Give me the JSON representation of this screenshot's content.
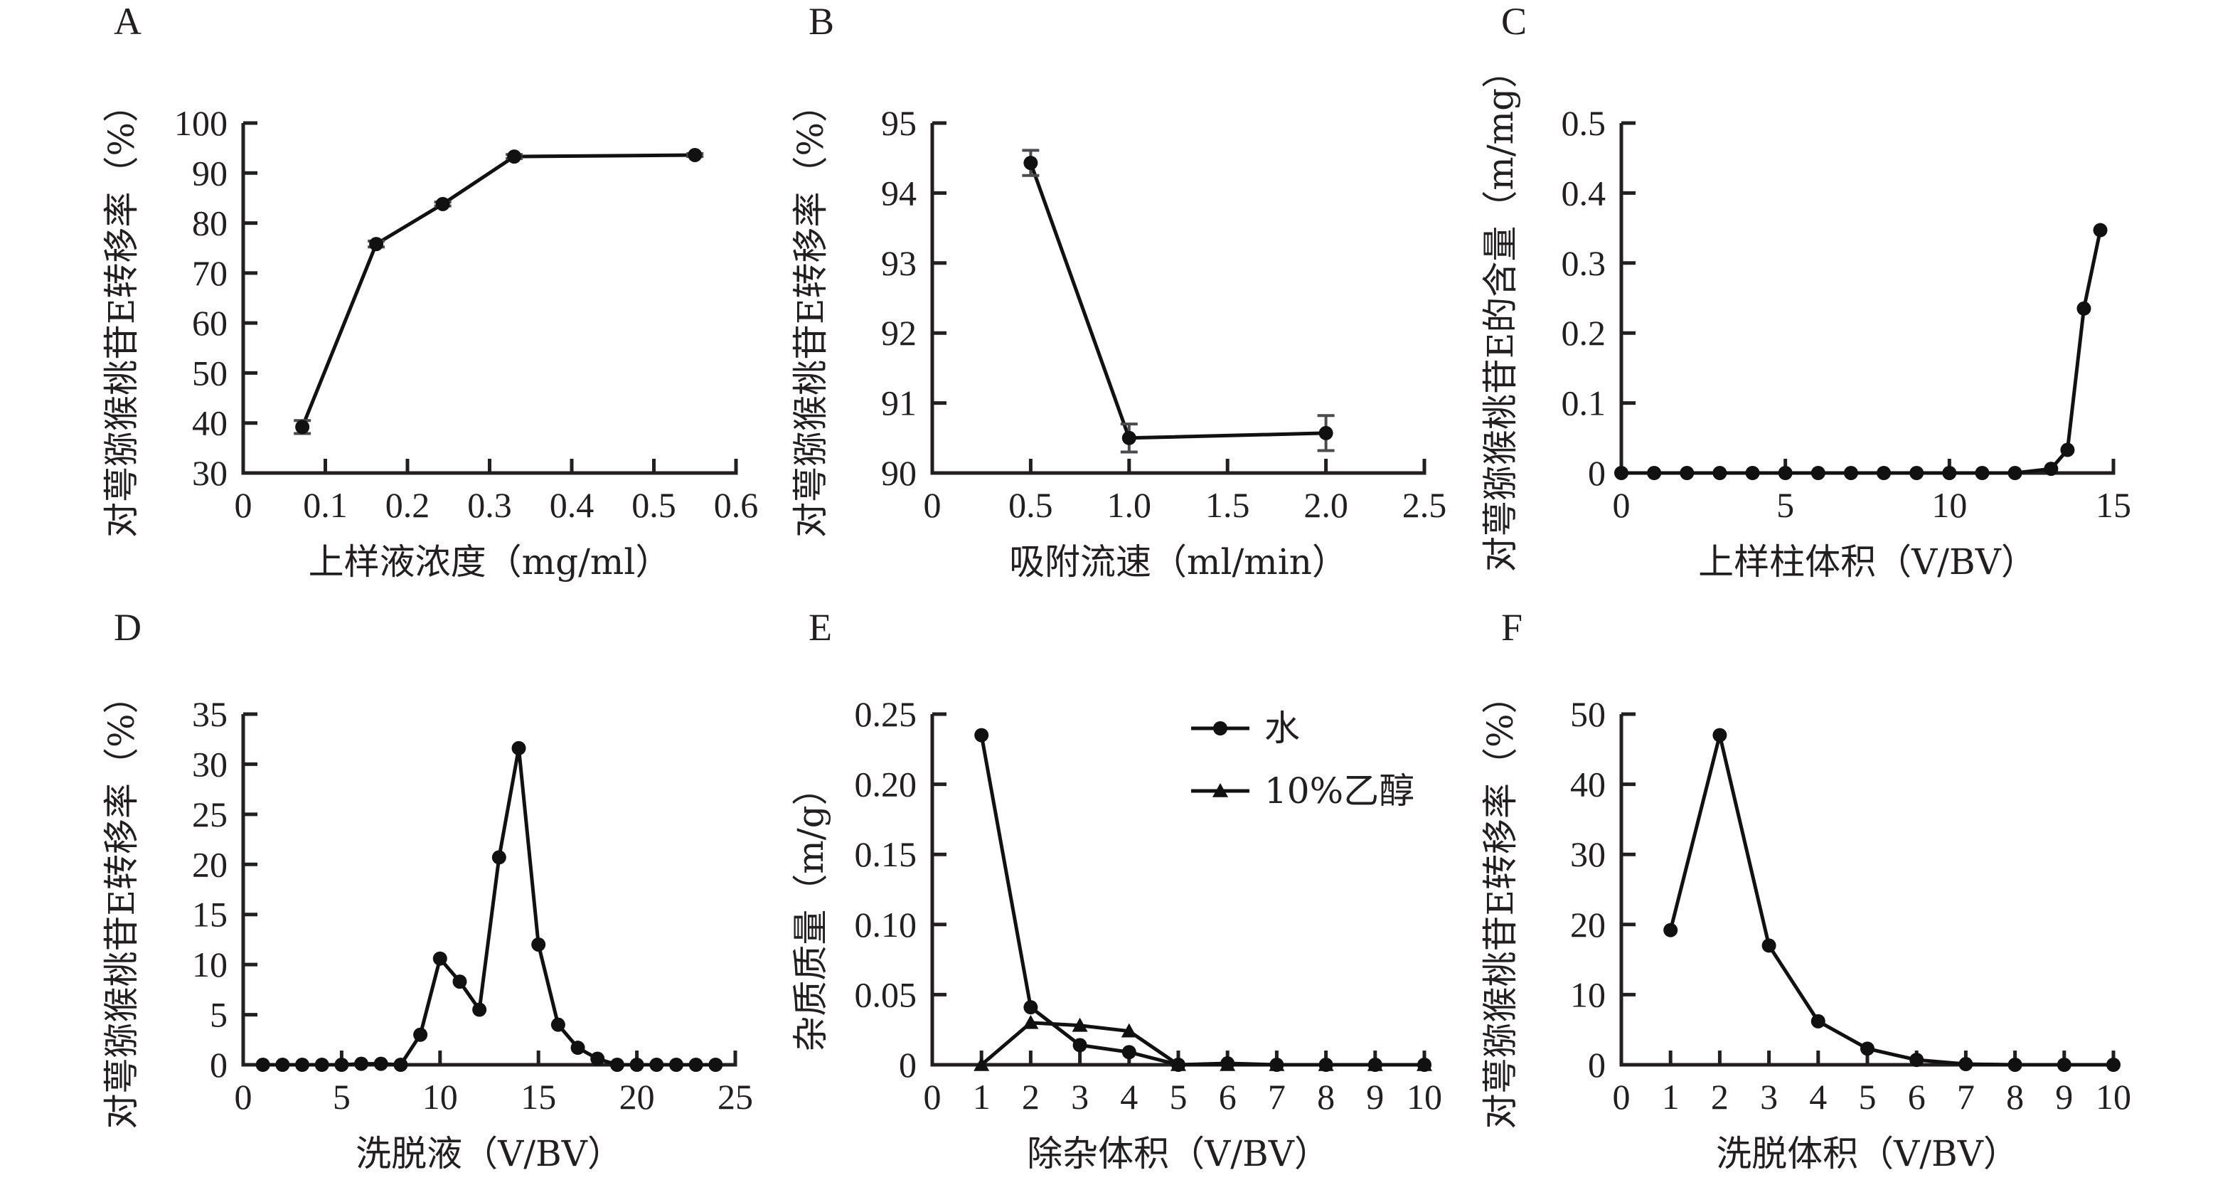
{
  "chart_data": [
    {
      "panel": "A",
      "type": "line",
      "title": "",
      "xlabel": "上样液浓度（mg/ml）",
      "ylabel": "对萼猕猴桃苷E转移率（%）",
      "xlim": [
        0,
        0.6
      ],
      "ylim": [
        30,
        100
      ],
      "xticks": [
        "0",
        "0.1",
        "0.2",
        "0.3",
        "0.4",
        "0.5",
        "0.6"
      ],
      "yticks": [
        "30",
        "40",
        "50",
        "60",
        "70",
        "80",
        "90",
        "100"
      ],
      "grid": false,
      "series": [
        {
          "name": "转移率",
          "marker": "circle",
          "x": [
            0.072,
            0.162,
            0.243,
            0.33,
            0.55
          ],
          "y": [
            39.2,
            75.8,
            83.8,
            93.3,
            93.6
          ],
          "err": [
            1.3,
            0.6,
            0.4,
            0.4,
            0.3
          ]
        }
      ]
    },
    {
      "panel": "B",
      "type": "line",
      "xlabel": "吸附流速（ml/min）",
      "ylabel": "对萼猕猴桃苷E转移率（%）",
      "xlim": [
        0,
        2.5
      ],
      "ylim": [
        90,
        95
      ],
      "xticks": [
        "0",
        "0.5",
        "1.0",
        "1.5",
        "2.0",
        "2.5"
      ],
      "yticks": [
        "90",
        "91",
        "92",
        "93",
        "94",
        "95"
      ],
      "grid": false,
      "series": [
        {
          "name": "转移率",
          "marker": "circle",
          "x": [
            0.5,
            1.0,
            2.0
          ],
          "y": [
            94.43,
            90.5,
            90.57
          ],
          "err": [
            0.18,
            0.2,
            0.25
          ]
        }
      ]
    },
    {
      "panel": "C",
      "type": "line",
      "xlabel": "上样柱体积（V/BV）",
      "ylabel": "对萼猕猴桃苷E的含量（m/mg）",
      "xlim": [
        0,
        15
      ],
      "ylim": [
        0,
        0.5
      ],
      "xticks": [
        "0",
        "5",
        "10",
        "15"
      ],
      "yticks": [
        "0",
        "0.1",
        "0.2",
        "0.3",
        "0.4",
        "0.5"
      ],
      "grid": false,
      "series": [
        {
          "name": "含量",
          "marker": "circle",
          "x": [
            0,
            1,
            2,
            3,
            4,
            5,
            6,
            7,
            8,
            9,
            10,
            11,
            12,
            13.1,
            13.6,
            14.1,
            14.6
          ],
          "y": [
            0,
            0,
            0,
            0,
            0,
            0,
            0,
            0,
            0,
            0,
            0,
            0,
            0,
            0.006,
            0.033,
            0.235,
            0.347
          ]
        }
      ]
    },
    {
      "panel": "D",
      "type": "line",
      "xlabel": "洗脱液（V/BV）",
      "ylabel": "对萼猕猴桃苷E转移率（%）",
      "xlim": [
        0,
        25
      ],
      "ylim": [
        0,
        35
      ],
      "xticks": [
        "0",
        "5",
        "10",
        "15",
        "20",
        "25"
      ],
      "yticks": [
        "0",
        "5",
        "10",
        "15",
        "20",
        "25",
        "30",
        "35"
      ],
      "grid": false,
      "series": [
        {
          "name": "转移率",
          "marker": "circle",
          "x": [
            1,
            2,
            3,
            4,
            5,
            6,
            7,
            8,
            9,
            10,
            11,
            12,
            13,
            14,
            15,
            16,
            17,
            18,
            19,
            20,
            21,
            22,
            23,
            24
          ],
          "y": [
            0,
            0,
            0,
            0,
            0,
            0.1,
            0.1,
            0,
            3,
            10.6,
            8.3,
            5.5,
            20.7,
            31.6,
            12,
            4,
            1.7,
            0.6,
            0,
            0,
            0,
            0,
            0,
            0
          ]
        }
      ]
    },
    {
      "panel": "E",
      "type": "line",
      "xlabel": "除杂体积（V/BV）",
      "ylabel": "杂质质量（m/g）",
      "xlim": [
        0,
        10
      ],
      "ylim": [
        0,
        0.25
      ],
      "xticks": [
        "0",
        "1",
        "2",
        "3",
        "4",
        "5",
        "6",
        "7",
        "8",
        "9",
        "10"
      ],
      "yticks": [
        "0",
        "0.05",
        "0.10",
        "0.15",
        "0.20",
        "0.25"
      ],
      "grid": false,
      "legend": "top-right",
      "series": [
        {
          "name": "水",
          "marker": "circle",
          "x": [
            1,
            2,
            3,
            4,
            5,
            6,
            7,
            8,
            9,
            10
          ],
          "y": [
            0.235,
            0.041,
            0.014,
            0.009,
            0,
            0.001,
            0,
            0,
            0,
            0
          ]
        },
        {
          "name": "10%乙醇",
          "marker": "triangle",
          "x": [
            1,
            2,
            3,
            4,
            5,
            6,
            7,
            8,
            9,
            10
          ],
          "y": [
            0,
            0.03,
            0.028,
            0.024,
            0,
            0,
            0,
            0,
            0,
            0
          ]
        }
      ]
    },
    {
      "panel": "F",
      "type": "line",
      "xlabel": "洗脱体积（V/BV）",
      "ylabel": "对萼猕猴桃苷E转移率（%）",
      "xlim": [
        0,
        10
      ],
      "ylim": [
        0,
        50
      ],
      "xticks": [
        "0",
        "1",
        "2",
        "3",
        "4",
        "5",
        "6",
        "7",
        "8",
        "9",
        "10"
      ],
      "yticks": [
        "0",
        "10",
        "20",
        "30",
        "40",
        "50"
      ],
      "grid": false,
      "series": [
        {
          "name": "转移率",
          "marker": "circle",
          "x": [
            1,
            2,
            3,
            4,
            5,
            6,
            7,
            8,
            9,
            10
          ],
          "y": [
            19.2,
            47,
            17,
            6.2,
            2.3,
            0.7,
            0.1,
            0,
            0,
            0
          ]
        }
      ]
    }
  ]
}
